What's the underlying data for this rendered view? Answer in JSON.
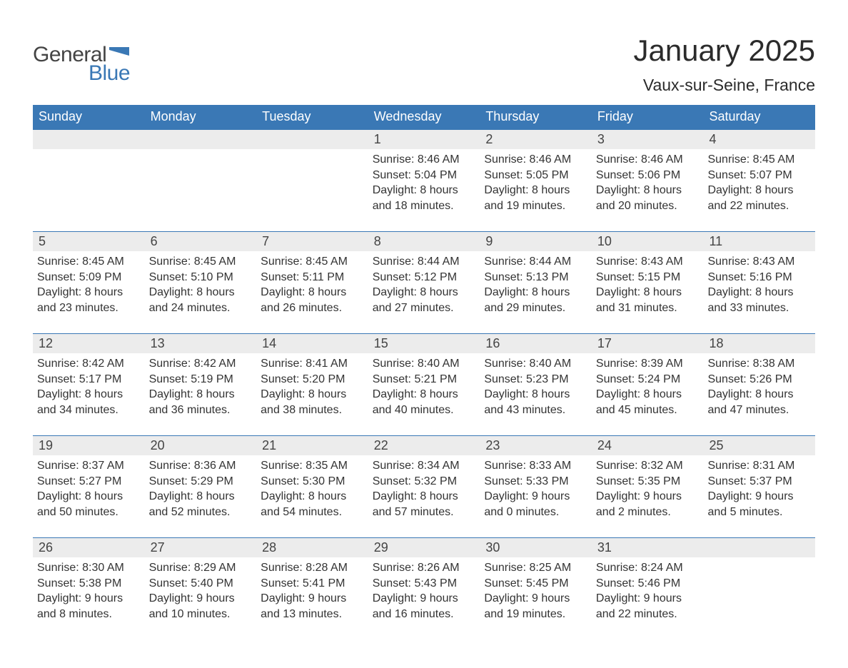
{
  "brand": {
    "part1": "General",
    "part2": "Blue",
    "flag_color": "#3a78b5"
  },
  "title": "January 2025",
  "location": "Vaux-sur-Seine, France",
  "colors": {
    "header_bar": "#3a78b5",
    "day_strip": "#ececec",
    "text": "#333333",
    "background": "#ffffff"
  },
  "weekdays": [
    "Sunday",
    "Monday",
    "Tuesday",
    "Wednesday",
    "Thursday",
    "Friday",
    "Saturday"
  ],
  "weeks": [
    [
      null,
      null,
      null,
      {
        "n": "1",
        "sunrise": "Sunrise: 8:46 AM",
        "sunset": "Sunset: 5:04 PM",
        "dl1": "Daylight: 8 hours",
        "dl2": "and 18 minutes."
      },
      {
        "n": "2",
        "sunrise": "Sunrise: 8:46 AM",
        "sunset": "Sunset: 5:05 PM",
        "dl1": "Daylight: 8 hours",
        "dl2": "and 19 minutes."
      },
      {
        "n": "3",
        "sunrise": "Sunrise: 8:46 AM",
        "sunset": "Sunset: 5:06 PM",
        "dl1": "Daylight: 8 hours",
        "dl2": "and 20 minutes."
      },
      {
        "n": "4",
        "sunrise": "Sunrise: 8:45 AM",
        "sunset": "Sunset: 5:07 PM",
        "dl1": "Daylight: 8 hours",
        "dl2": "and 22 minutes."
      }
    ],
    [
      {
        "n": "5",
        "sunrise": "Sunrise: 8:45 AM",
        "sunset": "Sunset: 5:09 PM",
        "dl1": "Daylight: 8 hours",
        "dl2": "and 23 minutes."
      },
      {
        "n": "6",
        "sunrise": "Sunrise: 8:45 AM",
        "sunset": "Sunset: 5:10 PM",
        "dl1": "Daylight: 8 hours",
        "dl2": "and 24 minutes."
      },
      {
        "n": "7",
        "sunrise": "Sunrise: 8:45 AM",
        "sunset": "Sunset: 5:11 PM",
        "dl1": "Daylight: 8 hours",
        "dl2": "and 26 minutes."
      },
      {
        "n": "8",
        "sunrise": "Sunrise: 8:44 AM",
        "sunset": "Sunset: 5:12 PM",
        "dl1": "Daylight: 8 hours",
        "dl2": "and 27 minutes."
      },
      {
        "n": "9",
        "sunrise": "Sunrise: 8:44 AM",
        "sunset": "Sunset: 5:13 PM",
        "dl1": "Daylight: 8 hours",
        "dl2": "and 29 minutes."
      },
      {
        "n": "10",
        "sunrise": "Sunrise: 8:43 AM",
        "sunset": "Sunset: 5:15 PM",
        "dl1": "Daylight: 8 hours",
        "dl2": "and 31 minutes."
      },
      {
        "n": "11",
        "sunrise": "Sunrise: 8:43 AM",
        "sunset": "Sunset: 5:16 PM",
        "dl1": "Daylight: 8 hours",
        "dl2": "and 33 minutes."
      }
    ],
    [
      {
        "n": "12",
        "sunrise": "Sunrise: 8:42 AM",
        "sunset": "Sunset: 5:17 PM",
        "dl1": "Daylight: 8 hours",
        "dl2": "and 34 minutes."
      },
      {
        "n": "13",
        "sunrise": "Sunrise: 8:42 AM",
        "sunset": "Sunset: 5:19 PM",
        "dl1": "Daylight: 8 hours",
        "dl2": "and 36 minutes."
      },
      {
        "n": "14",
        "sunrise": "Sunrise: 8:41 AM",
        "sunset": "Sunset: 5:20 PM",
        "dl1": "Daylight: 8 hours",
        "dl2": "and 38 minutes."
      },
      {
        "n": "15",
        "sunrise": "Sunrise: 8:40 AM",
        "sunset": "Sunset: 5:21 PM",
        "dl1": "Daylight: 8 hours",
        "dl2": "and 40 minutes."
      },
      {
        "n": "16",
        "sunrise": "Sunrise: 8:40 AM",
        "sunset": "Sunset: 5:23 PM",
        "dl1": "Daylight: 8 hours",
        "dl2": "and 43 minutes."
      },
      {
        "n": "17",
        "sunrise": "Sunrise: 8:39 AM",
        "sunset": "Sunset: 5:24 PM",
        "dl1": "Daylight: 8 hours",
        "dl2": "and 45 minutes."
      },
      {
        "n": "18",
        "sunrise": "Sunrise: 8:38 AM",
        "sunset": "Sunset: 5:26 PM",
        "dl1": "Daylight: 8 hours",
        "dl2": "and 47 minutes."
      }
    ],
    [
      {
        "n": "19",
        "sunrise": "Sunrise: 8:37 AM",
        "sunset": "Sunset: 5:27 PM",
        "dl1": "Daylight: 8 hours",
        "dl2": "and 50 minutes."
      },
      {
        "n": "20",
        "sunrise": "Sunrise: 8:36 AM",
        "sunset": "Sunset: 5:29 PM",
        "dl1": "Daylight: 8 hours",
        "dl2": "and 52 minutes."
      },
      {
        "n": "21",
        "sunrise": "Sunrise: 8:35 AM",
        "sunset": "Sunset: 5:30 PM",
        "dl1": "Daylight: 8 hours",
        "dl2": "and 54 minutes."
      },
      {
        "n": "22",
        "sunrise": "Sunrise: 8:34 AM",
        "sunset": "Sunset: 5:32 PM",
        "dl1": "Daylight: 8 hours",
        "dl2": "and 57 minutes."
      },
      {
        "n": "23",
        "sunrise": "Sunrise: 8:33 AM",
        "sunset": "Sunset: 5:33 PM",
        "dl1": "Daylight: 9 hours",
        "dl2": "and 0 minutes."
      },
      {
        "n": "24",
        "sunrise": "Sunrise: 8:32 AM",
        "sunset": "Sunset: 5:35 PM",
        "dl1": "Daylight: 9 hours",
        "dl2": "and 2 minutes."
      },
      {
        "n": "25",
        "sunrise": "Sunrise: 8:31 AM",
        "sunset": "Sunset: 5:37 PM",
        "dl1": "Daylight: 9 hours",
        "dl2": "and 5 minutes."
      }
    ],
    [
      {
        "n": "26",
        "sunrise": "Sunrise: 8:30 AM",
        "sunset": "Sunset: 5:38 PM",
        "dl1": "Daylight: 9 hours",
        "dl2": "and 8 minutes."
      },
      {
        "n": "27",
        "sunrise": "Sunrise: 8:29 AM",
        "sunset": "Sunset: 5:40 PM",
        "dl1": "Daylight: 9 hours",
        "dl2": "and 10 minutes."
      },
      {
        "n": "28",
        "sunrise": "Sunrise: 8:28 AM",
        "sunset": "Sunset: 5:41 PM",
        "dl1": "Daylight: 9 hours",
        "dl2": "and 13 minutes."
      },
      {
        "n": "29",
        "sunrise": "Sunrise: 8:26 AM",
        "sunset": "Sunset: 5:43 PM",
        "dl1": "Daylight: 9 hours",
        "dl2": "and 16 minutes."
      },
      {
        "n": "30",
        "sunrise": "Sunrise: 8:25 AM",
        "sunset": "Sunset: 5:45 PM",
        "dl1": "Daylight: 9 hours",
        "dl2": "and 19 minutes."
      },
      {
        "n": "31",
        "sunrise": "Sunrise: 8:24 AM",
        "sunset": "Sunset: 5:46 PM",
        "dl1": "Daylight: 9 hours",
        "dl2": "and 22 minutes."
      },
      null
    ]
  ]
}
